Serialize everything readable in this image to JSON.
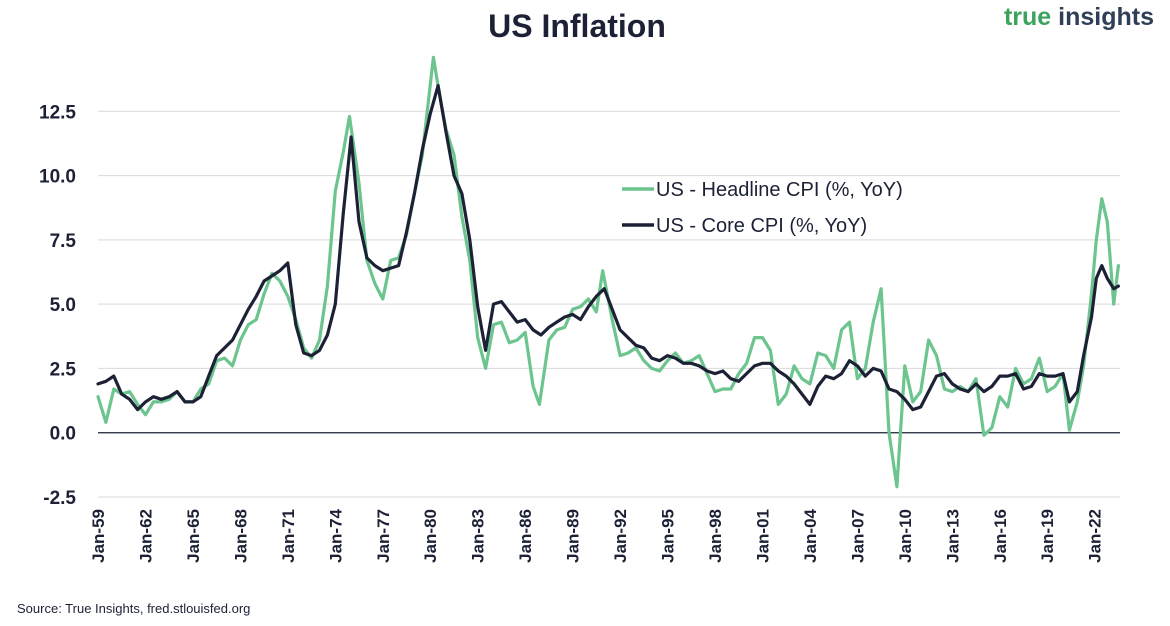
{
  "title": "US Inflation",
  "logo": {
    "word1": "true",
    "word2": "insights"
  },
  "source": "Source: True Insights, fred.stlouisfed.org",
  "colors": {
    "headline": "#6cc48e",
    "core": "#1c2136",
    "grid": "#d9d9d9",
    "axis": "#1c2136"
  },
  "chart_data": {
    "type": "line",
    "title": "US Inflation",
    "xlabel": "",
    "ylabel": "",
    "xlim": [
      1959.0,
      2023.6
    ],
    "ylim": [
      -2.5,
      15
    ],
    "yticks": [
      -2.5,
      0,
      2.5,
      5,
      7.5,
      10,
      12.5
    ],
    "ytick_labels": [
      "-2.5",
      "0.0",
      "2.5",
      "5.0",
      "7.5",
      "10.0",
      "12.5"
    ],
    "xtick_labels": [
      "Jan-59",
      "Jan-62",
      "Jan-65",
      "Jan-68",
      "Jan-71",
      "Jan-74",
      "Jan-77",
      "Jan-80",
      "Jan-83",
      "Jan-86",
      "Jan-89",
      "Jan-92",
      "Jan-95",
      "Jan-98",
      "Jan-01",
      "Jan-04",
      "Jan-07",
      "Jan-10",
      "Jan-13",
      "Jan-16",
      "Jan-19",
      "Jan-22"
    ],
    "xtick_years": [
      1959,
      1962,
      1965,
      1968,
      1971,
      1974,
      1977,
      1980,
      1983,
      1986,
      1989,
      1992,
      1995,
      1998,
      2001,
      2004,
      2007,
      2010,
      2013,
      2016,
      2019,
      2022
    ],
    "grid": true,
    "legend_position": "center-right",
    "series": [
      {
        "name": "US - Headline CPI (%, YoY)",
        "x": [
          1959.0,
          1959.5,
          1960.0,
          1960.5,
          1961.0,
          1961.5,
          1962.0,
          1962.5,
          1963.0,
          1963.5,
          1964.0,
          1964.5,
          1965.0,
          1965.5,
          1966.0,
          1966.5,
          1967.0,
          1967.5,
          1968.0,
          1968.5,
          1969.0,
          1969.5,
          1970.0,
          1970.5,
          1971.0,
          1971.5,
          1972.0,
          1972.5,
          1973.0,
          1973.5,
          1974.0,
          1974.5,
          1974.9,
          1975.5,
          1976.0,
          1976.5,
          1977.0,
          1977.5,
          1978.0,
          1978.5,
          1979.0,
          1979.5,
          1980.2,
          1980.6,
          1981.0,
          1981.5,
          1982.0,
          1982.5,
          1983.0,
          1983.5,
          1984.0,
          1984.5,
          1985.0,
          1985.5,
          1986.0,
          1986.5,
          1986.9,
          1987.5,
          1988.0,
          1988.5,
          1989.0,
          1989.5,
          1990.0,
          1990.5,
          1990.9,
          1991.5,
          1992.0,
          1992.5,
          1993.0,
          1993.5,
          1994.0,
          1994.5,
          1995.0,
          1995.5,
          1996.0,
          1996.5,
          1997.0,
          1997.5,
          1998.0,
          1998.5,
          1999.0,
          1999.5,
          2000.0,
          2000.5,
          2001.0,
          2001.5,
          2002.0,
          2002.5,
          2003.0,
          2003.5,
          2004.0,
          2004.5,
          2005.0,
          2005.5,
          2006.0,
          2006.5,
          2007.0,
          2007.5,
          2008.0,
          2008.5,
          2009.0,
          2009.5,
          2010.0,
          2010.5,
          2011.0,
          2011.5,
          2012.0,
          2012.5,
          2013.0,
          2013.5,
          2014.0,
          2014.5,
          2015.0,
          2015.5,
          2016.0,
          2016.5,
          2017.0,
          2017.5,
          2018.0,
          2018.5,
          2019.0,
          2019.5,
          2020.0,
          2020.4,
          2020.9,
          2021.3,
          2021.8,
          2022.1,
          2022.45,
          2022.8,
          2023.2,
          2023.5
        ],
        "values": [
          1.4,
          0.4,
          1.7,
          1.5,
          1.6,
          1.1,
          0.7,
          1.2,
          1.2,
          1.3,
          1.6,
          1.2,
          1.2,
          1.7,
          1.9,
          2.8,
          2.9,
          2.6,
          3.6,
          4.2,
          4.4,
          5.4,
          6.2,
          5.9,
          5.3,
          4.4,
          3.3,
          2.9,
          3.6,
          5.7,
          9.4,
          10.9,
          12.3,
          9.7,
          6.7,
          5.8,
          5.2,
          6.7,
          6.8,
          7.7,
          9.3,
          10.8,
          14.6,
          13.1,
          11.8,
          10.8,
          8.4,
          6.7,
          3.7,
          2.5,
          4.2,
          4.3,
          3.5,
          3.6,
          3.9,
          1.8,
          1.1,
          3.6,
          4.0,
          4.1,
          4.8,
          4.9,
          5.2,
          4.7,
          6.3,
          4.4,
          3.0,
          3.1,
          3.3,
          2.8,
          2.5,
          2.4,
          2.8,
          3.1,
          2.7,
          2.8,
          3.0,
          2.3,
          1.6,
          1.7,
          1.7,
          2.3,
          2.7,
          3.7,
          3.7,
          3.2,
          1.1,
          1.5,
          2.6,
          2.1,
          1.9,
          3.1,
          3.0,
          2.5,
          4.0,
          4.3,
          2.1,
          2.5,
          4.3,
          5.6,
          0.0,
          -2.1,
          2.6,
          1.2,
          1.6,
          3.6,
          3.0,
          1.7,
          1.6,
          1.8,
          1.6,
          2.1,
          -0.1,
          0.2,
          1.4,
          1.0,
          2.5,
          1.9,
          2.1,
          2.9,
          1.6,
          1.8,
          2.3,
          0.1,
          1.2,
          2.6,
          5.4,
          7.5,
          9.1,
          8.2,
          5.0,
          6.5
        ]
      },
      {
        "name": "US - Core CPI (%, YoY)",
        "x": [
          1959.0,
          1959.5,
          1960.0,
          1960.5,
          1961.0,
          1961.5,
          1962.0,
          1962.5,
          1963.0,
          1963.5,
          1964.0,
          1964.5,
          1965.0,
          1965.5,
          1966.0,
          1966.5,
          1967.0,
          1967.5,
          1968.0,
          1968.5,
          1969.0,
          1969.5,
          1970.0,
          1970.5,
          1971.0,
          1971.5,
          1972.0,
          1972.5,
          1973.0,
          1973.5,
          1974.0,
          1974.5,
          1975.0,
          1975.5,
          1976.0,
          1976.5,
          1977.0,
          1977.5,
          1978.0,
          1978.5,
          1979.0,
          1979.5,
          1980.0,
          1980.5,
          1981.0,
          1981.5,
          1982.0,
          1982.5,
          1983.0,
          1983.5,
          1984.0,
          1984.5,
          1985.0,
          1985.5,
          1986.0,
          1986.5,
          1987.0,
          1987.5,
          1988.0,
          1988.5,
          1989.0,
          1989.5,
          1990.0,
          1990.5,
          1991.0,
          1991.5,
          1992.0,
          1992.5,
          1993.0,
          1993.5,
          1994.0,
          1994.5,
          1995.0,
          1995.5,
          1996.0,
          1996.5,
          1997.0,
          1997.5,
          1998.0,
          1998.5,
          1999.0,
          1999.5,
          2000.0,
          2000.5,
          2001.0,
          2001.5,
          2002.0,
          2002.5,
          2003.0,
          2003.5,
          2004.0,
          2004.5,
          2005.0,
          2005.5,
          2006.0,
          2006.5,
          2007.0,
          2007.5,
          2008.0,
          2008.5,
          2009.0,
          2009.5,
          2010.0,
          2010.5,
          2011.0,
          2011.5,
          2012.0,
          2012.5,
          2013.0,
          2013.5,
          2014.0,
          2014.5,
          2015.0,
          2015.5,
          2016.0,
          2016.5,
          2017.0,
          2017.5,
          2018.0,
          2018.5,
          2019.0,
          2019.5,
          2020.0,
          2020.4,
          2020.9,
          2021.3,
          2021.8,
          2022.1,
          2022.45,
          2022.8,
          2023.2,
          2023.5
        ],
        "values": [
          1.9,
          2.0,
          2.2,
          1.5,
          1.3,
          0.9,
          1.2,
          1.4,
          1.3,
          1.4,
          1.6,
          1.2,
          1.2,
          1.4,
          2.2,
          3.0,
          3.3,
          3.6,
          4.2,
          4.8,
          5.3,
          5.9,
          6.1,
          6.3,
          6.6,
          4.2,
          3.1,
          3.0,
          3.2,
          3.8,
          5.0,
          8.5,
          11.5,
          8.2,
          6.8,
          6.5,
          6.3,
          6.4,
          6.5,
          7.8,
          9.3,
          11.0,
          12.4,
          13.5,
          11.7,
          10.0,
          9.3,
          7.5,
          4.9,
          3.2,
          5.0,
          5.1,
          4.7,
          4.3,
          4.4,
          4.0,
          3.8,
          4.1,
          4.3,
          4.5,
          4.6,
          4.4,
          4.9,
          5.3,
          5.6,
          4.8,
          4.0,
          3.7,
          3.4,
          3.3,
          2.9,
          2.8,
          3.0,
          2.9,
          2.7,
          2.7,
          2.6,
          2.4,
          2.3,
          2.4,
          2.1,
          2.0,
          2.3,
          2.6,
          2.7,
          2.7,
          2.4,
          2.2,
          1.9,
          1.5,
          1.1,
          1.8,
          2.2,
          2.1,
          2.3,
          2.8,
          2.6,
          2.2,
          2.5,
          2.4,
          1.7,
          1.6,
          1.3,
          0.9,
          1.0,
          1.6,
          2.2,
          2.3,
          1.9,
          1.7,
          1.6,
          1.9,
          1.6,
          1.8,
          2.2,
          2.2,
          2.3,
          1.7,
          1.8,
          2.3,
          2.2,
          2.2,
          2.3,
          1.2,
          1.6,
          3.0,
          4.5,
          6.0,
          6.5,
          6.0,
          5.6,
          5.7
        ]
      }
    ]
  }
}
